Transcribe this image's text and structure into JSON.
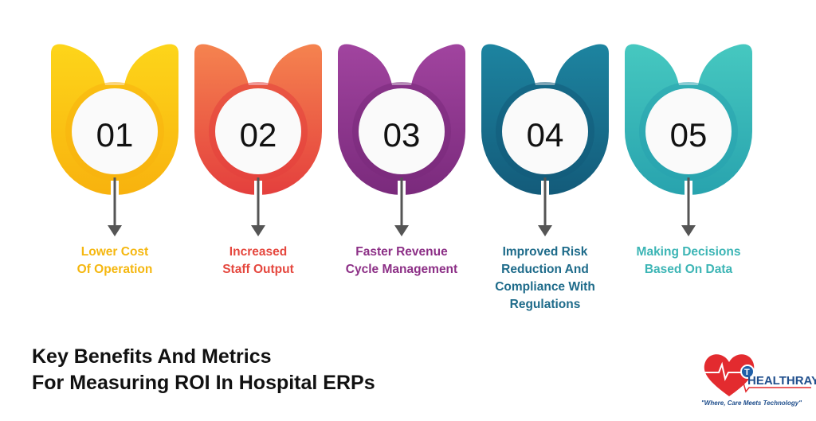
{
  "items": [
    {
      "number": "01",
      "label_lines": [
        "Lower Cost",
        "Of Operation"
      ],
      "colors": [
        "#FDD51A",
        "#F8B20E"
      ],
      "text_color": "#F5B70F"
    },
    {
      "number": "02",
      "label_lines": [
        "Increased",
        "Staff Output"
      ],
      "colors": [
        "#F5834F",
        "#E43F3D"
      ],
      "text_color": "#E5473E"
    },
    {
      "number": "03",
      "label_lines": [
        "Faster Revenue",
        "Cycle Management"
      ],
      "colors": [
        "#A1449F",
        "#7A2A7C"
      ],
      "text_color": "#8C2F86"
    },
    {
      "number": "04",
      "label_lines": [
        "Improved Risk",
        "Reduction And",
        "Compliance With",
        "Regulations"
      ],
      "colors": [
        "#1D84A0",
        "#135B7A"
      ],
      "text_color": "#1E6B8A"
    },
    {
      "number": "05",
      "label_lines": [
        "Making Decisions",
        "Based On Data"
      ],
      "colors": [
        "#46C8C0",
        "#28A3AE"
      ],
      "text_color": "#3CB5B5"
    }
  ],
  "title_lines": [
    "Key Benefits And Metrics",
    "For Measuring ROI In Hospital ERPs"
  ],
  "logo": {
    "name": "HEALTHRAY",
    "tagline": "\"Where, Care Meets Technology\""
  }
}
